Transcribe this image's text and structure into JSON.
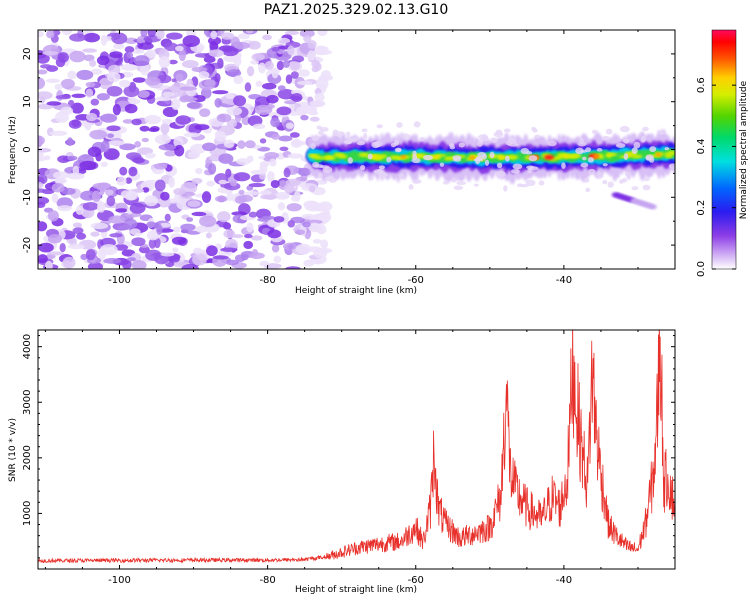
{
  "title": "PAZ1.2025.329.02.13.G10",
  "chart_data": [
    {
      "type": "heatmap",
      "xlabel": "Height of straight line (km)",
      "ylabel": "Frequency (Hz)",
      "xlim": [
        -111,
        -25
      ],
      "ylim": [
        -25,
        25
      ],
      "xticks": [
        -100,
        -80,
        -60,
        -40
      ],
      "yticks": [
        -20,
        -10,
        0,
        10,
        20
      ],
      "noise_region_km": [
        -111,
        -72
      ],
      "signal_track": {
        "start_km": -74,
        "end_km": -25,
        "freq_hz": [
          [
            -74,
            -1.5
          ],
          [
            -60,
            -1.5
          ],
          [
            -50,
            -1.8
          ],
          [
            -40,
            -1.6
          ],
          [
            -30,
            -1.2
          ],
          [
            -25,
            -1.0
          ]
        ],
        "peak_km": [
          -44,
          -42,
          -36
        ]
      },
      "secondary_feature": {
        "x_km": [
          -33,
          -28
        ],
        "freq_hz": [
          -9.5,
          -12
        ]
      },
      "colorbar": {
        "label": "Normalized spectral amplitude",
        "range": [
          0,
          0.78
        ],
        "ticks": [
          0.0,
          0.2,
          0.4,
          0.6
        ]
      }
    },
    {
      "type": "line",
      "xlabel": "Height of straight line (km)",
      "ylabel": "SNR (10 * v/v)",
      "xlim": [
        -111,
        -25
      ],
      "ylim": [
        0,
        4300
      ],
      "xticks": [
        -100,
        -80,
        -60,
        -40
      ],
      "yticks": [
        1000,
        2000,
        3000,
        4000
      ],
      "color": "#e8302a",
      "series": [
        {
          "name": "SNR",
          "x": [
            -111,
            -100,
            -90,
            -80,
            -75,
            -72,
            -70,
            -68,
            -65,
            -62,
            -60,
            -59,
            -58,
            -57.5,
            -57,
            -56,
            -54,
            -52,
            -50,
            -48.5,
            -47.8,
            -47.2,
            -46.5,
            -45,
            -43,
            -41.5,
            -40.5,
            -39.5,
            -38.8,
            -38,
            -37.5,
            -36.8,
            -36.2,
            -35.5,
            -35,
            -34.5,
            -34,
            -33,
            -31.5,
            -30,
            -29,
            -28,
            -27.5,
            -27,
            -26.5,
            -26,
            -25
          ],
          "values": [
            150,
            155,
            160,
            160,
            170,
            220,
            300,
            380,
            450,
            500,
            750,
            480,
            1100,
            2200,
            1100,
            800,
            550,
            650,
            750,
            1300,
            3200,
            1700,
            1400,
            1100,
            900,
            1300,
            1100,
            1700,
            3750,
            2600,
            2100,
            1500,
            3550,
            2300,
            1700,
            1300,
            800,
            600,
            400,
            350,
            800,
            1600,
            2400,
            4300,
            1500,
            1700,
            1100
          ]
        }
      ]
    }
  ]
}
